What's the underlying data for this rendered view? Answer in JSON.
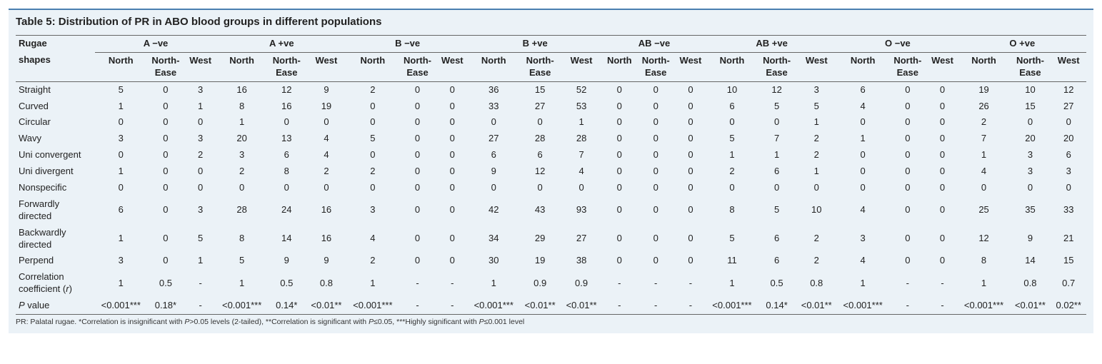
{
  "title": "Table 5: Distribution of PR in ABO blood groups in different populations",
  "row_header_line1": "Rugae",
  "row_header_line2": "shapes",
  "groups": [
    "A −ve",
    "A +ve",
    "B −ve",
    "B +ve",
    "AB −ve",
    "AB +ve",
    "O −ve",
    "O +ve"
  ],
  "sub_cols": [
    "North",
    "North-Ease",
    "West"
  ],
  "rows": [
    {
      "label": "Straight",
      "vals": [
        "5",
        "0",
        "3",
        "16",
        "12",
        "9",
        "2",
        "0",
        "0",
        "36",
        "15",
        "52",
        "0",
        "0",
        "0",
        "10",
        "12",
        "3",
        "6",
        "0",
        "0",
        "19",
        "10",
        "12"
      ]
    },
    {
      "label": "Curved",
      "vals": [
        "1",
        "0",
        "1",
        "8",
        "16",
        "19",
        "0",
        "0",
        "0",
        "33",
        "27",
        "53",
        "0",
        "0",
        "0",
        "6",
        "5",
        "5",
        "4",
        "0",
        "0",
        "26",
        "15",
        "27"
      ]
    },
    {
      "label": "Circular",
      "vals": [
        "0",
        "0",
        "0",
        "1",
        "0",
        "0",
        "0",
        "0",
        "0",
        "0",
        "0",
        "1",
        "0",
        "0",
        "0",
        "0",
        "0",
        "1",
        "0",
        "0",
        "0",
        "2",
        "0",
        "0"
      ]
    },
    {
      "label": "Wavy",
      "vals": [
        "3",
        "0",
        "3",
        "20",
        "13",
        "4",
        "5",
        "0",
        "0",
        "27",
        "28",
        "28",
        "0",
        "0",
        "0",
        "5",
        "7",
        "2",
        "1",
        "0",
        "0",
        "7",
        "20",
        "20"
      ]
    },
    {
      "label": "Uni convergent",
      "vals": [
        "0",
        "0",
        "2",
        "3",
        "6",
        "4",
        "0",
        "0",
        "0",
        "6",
        "6",
        "7",
        "0",
        "0",
        "0",
        "1",
        "1",
        "2",
        "0",
        "0",
        "0",
        "1",
        "3",
        "6"
      ]
    },
    {
      "label": "Uni divergent",
      "vals": [
        "1",
        "0",
        "0",
        "2",
        "8",
        "2",
        "2",
        "0",
        "0",
        "9",
        "12",
        "4",
        "0",
        "0",
        "0",
        "2",
        "6",
        "1",
        "0",
        "0",
        "0",
        "4",
        "3",
        "3"
      ]
    },
    {
      "label": "Nonspecific",
      "vals": [
        "0",
        "0",
        "0",
        "0",
        "0",
        "0",
        "0",
        "0",
        "0",
        "0",
        "0",
        "0",
        "0",
        "0",
        "0",
        "0",
        "0",
        "0",
        "0",
        "0",
        "0",
        "0",
        "0",
        "0"
      ]
    },
    {
      "label": "Forwardly directed",
      "vals": [
        "6",
        "0",
        "3",
        "28",
        "24",
        "16",
        "3",
        "0",
        "0",
        "42",
        "43",
        "93",
        "0",
        "0",
        "0",
        "8",
        "5",
        "10",
        "4",
        "0",
        "0",
        "25",
        "35",
        "33"
      ]
    },
    {
      "label": "Backwardly directed",
      "vals": [
        "1",
        "0",
        "5",
        "8",
        "14",
        "16",
        "4",
        "0",
        "0",
        "34",
        "29",
        "27",
        "0",
        "0",
        "0",
        "5",
        "6",
        "2",
        "3",
        "0",
        "0",
        "12",
        "9",
        "21"
      ]
    },
    {
      "label": "Perpend",
      "vals": [
        "3",
        "0",
        "1",
        "5",
        "9",
        "9",
        "2",
        "0",
        "0",
        "30",
        "19",
        "38",
        "0",
        "0",
        "0",
        "11",
        "6",
        "2",
        "4",
        "0",
        "0",
        "8",
        "14",
        "15"
      ]
    },
    {
      "label": "Correlation coefficient (r)",
      "label_html": "Correlation coefficient (<span class=\"italic\">r</span>)",
      "vals": [
        "1",
        "0.5",
        "-",
        "1",
        "0.5",
        "0.8",
        "1",
        "-",
        "-",
        "1",
        "0.9",
        "0.9",
        "-",
        "-",
        "-",
        "1",
        "0.5",
        "0.8",
        "1",
        "-",
        "-",
        "1",
        "0.8",
        "0.7"
      ]
    },
    {
      "label": "P value",
      "label_html": "<span class=\"italic\">P</span> value",
      "vals": [
        "<0.001***",
        "0.18*",
        "-",
        "<0.001***",
        "0.14*",
        "<0.01**",
        "<0.001***",
        "-",
        "-",
        "<0.001***",
        "<0.01**",
        "<0.01**",
        "-",
        "-",
        "-",
        "<0.001***",
        "0.14*",
        "<0.01**",
        "<0.001***",
        "-",
        "-",
        "<0.001***",
        "<0.01**",
        "0.02**"
      ]
    }
  ],
  "footnote_html": "PR: Palatal rugae. *Correlation is insignificant with <span class=\"italic\">P</span>>0.05 levels (2-tailed), **Correlation is significant with <span class=\"italic\">P</span>≤0.05, ***Highly significant with <span class=\"italic\">P</span>≤0.001 level",
  "colors": {
    "bg_panel": "#ebf2f7",
    "top_border": "#4a7fb0",
    "rule": "#666666",
    "text": "#222222"
  }
}
